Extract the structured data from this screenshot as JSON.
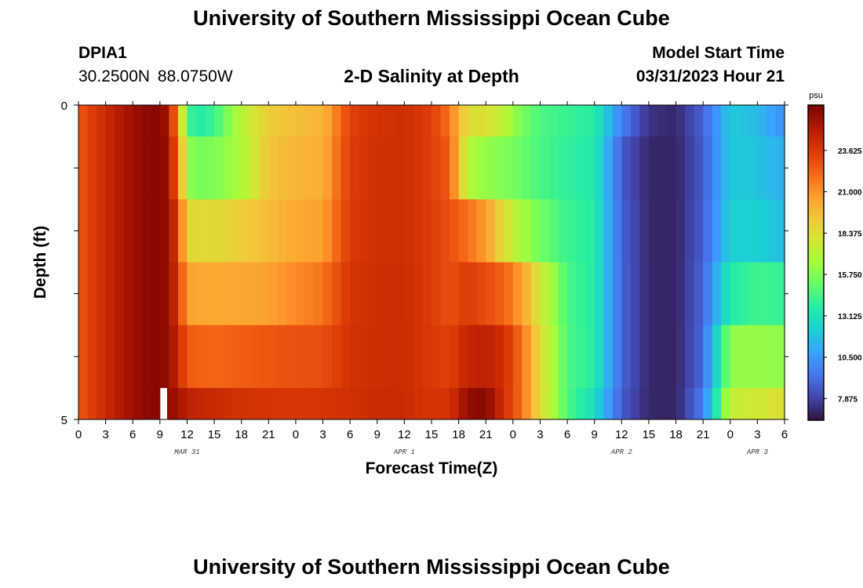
{
  "header": {
    "title": "University of Southern Mississippi Ocean Cube",
    "station_id": "DPIA1",
    "station_coords": "30.2500N  88.0750W",
    "chart_title": "2-D Salinity at Depth",
    "model_start_label": "Model Start Time",
    "model_start_value": "03/31/2023 Hour 21"
  },
  "footer": {
    "title": "University of Southern Mississippi Ocean Cube"
  },
  "chart_data": {
    "type": "heatmap",
    "title": "2-D Salinity at Depth",
    "xlabel": "Forecast Time(Z)",
    "ylabel": "Depth (ft)",
    "x_tick_labels": [
      "0",
      "3",
      "6",
      "9",
      "12",
      "15",
      "18",
      "21",
      "0",
      "3",
      "6",
      "9",
      "12",
      "15",
      "18",
      "21",
      "0",
      "3",
      "6",
      "9",
      "12",
      "15",
      "18",
      "21",
      "0",
      "3",
      "6"
    ],
    "x_range_hours": [
      0,
      78
    ],
    "day_labels": [
      {
        "label": "MAR 31",
        "hour": 12
      },
      {
        "label": "APR 1",
        "hour": 36
      },
      {
        "label": "APR 2",
        "hour": 60
      },
      {
        "label": "APR 3",
        "hour": 75
      }
    ],
    "y_tick_labels": [
      "0",
      "5"
    ],
    "y_range": [
      0,
      5
    ],
    "y_reversed": true,
    "layer_bounds": [
      0,
      0.5,
      1.5,
      2.5,
      3.5,
      4.5,
      5
    ],
    "colorbar": {
      "unit": "psu",
      "min": 6.5,
      "max": 26.5,
      "labels": [
        "23.625",
        "21.000",
        "18.375",
        "15.750",
        "13.125",
        "10.500",
        "7.875"
      ]
    },
    "missing": {
      "hour": 9,
      "layer": 5
    },
    "hours": [
      0,
      3,
      6,
      7.5,
      9,
      10,
      11,
      12,
      13,
      15,
      18,
      21,
      24,
      27,
      30,
      33,
      36,
      39,
      41,
      43,
      45,
      47,
      49,
      51,
      54,
      57,
      60,
      63,
      66,
      69,
      72,
      75,
      78
    ],
    "layers": [
      {
        "name": "0-0.5 ft",
        "values": [
          22.6,
          24.3,
          25.6,
          26.0,
          26.2,
          25.2,
          20.6,
          14.6,
          13.5,
          14.2,
          17.1,
          19.1,
          19.6,
          19.9,
          23.3,
          23.9,
          24.1,
          23.4,
          21.8,
          18.3,
          18.3,
          17.3,
          15.5,
          14.6,
          14.1,
          13.7,
          9.7,
          7.4,
          7.1,
          8.8,
          12.1,
          11.5,
          10.2
        ]
      },
      {
        "name": "0.5-1.5 ft",
        "values": [
          22.6,
          24.3,
          25.6,
          26.0,
          26.2,
          25.6,
          21.6,
          16.3,
          15.5,
          15.7,
          16.7,
          19.4,
          19.9,
          20.1,
          23.5,
          24.0,
          24.1,
          23.4,
          22.5,
          17.0,
          16.1,
          15.8,
          15.2,
          14.5,
          13.9,
          13.5,
          8.6,
          7.1,
          7.0,
          8.6,
          12.1,
          11.8,
          11.2
        ]
      },
      {
        "name": "1.5-2.5 ft",
        "values": [
          22.6,
          24.3,
          25.6,
          26.0,
          26.2,
          25.6,
          23.2,
          18.7,
          18.5,
          18.5,
          19.1,
          19.7,
          20.3,
          20.6,
          23.6,
          24.0,
          24.1,
          23.5,
          22.8,
          21.9,
          20.7,
          18.4,
          16.6,
          15.4,
          14.2,
          13.6,
          8.8,
          7.1,
          7.0,
          8.7,
          12.3,
          12.3,
          11.6
        ]
      },
      {
        "name": "2.5-3.5 ft",
        "values": [
          22.6,
          24.3,
          25.6,
          26.0,
          26.2,
          25.6,
          23.7,
          20.6,
          20.4,
          20.3,
          20.4,
          20.6,
          21.2,
          21.8,
          23.8,
          24.1,
          24.2,
          23.5,
          22.8,
          23.6,
          22.9,
          22.3,
          20.6,
          17.9,
          14.5,
          13.6,
          8.9,
          7.1,
          7.0,
          8.9,
          13.6,
          14.3,
          14.0
        ]
      },
      {
        "name": "3.5-4.5 ft",
        "values": [
          22.6,
          24.3,
          25.6,
          26.0,
          26.2,
          25.7,
          24.4,
          22.5,
          22.3,
          22.2,
          22.4,
          22.6,
          22.8,
          22.9,
          23.9,
          24.1,
          24.2,
          23.6,
          23.3,
          24.5,
          24.7,
          24.1,
          21.9,
          18.6,
          14.6,
          13.6,
          8.9,
          7.1,
          7.0,
          9.0,
          16.1,
          16.2,
          16.0
        ]
      },
      {
        "name": "4.5-5 ft",
        "values": [
          22.6,
          24.3,
          25.6,
          26.0,
          26.2,
          26.0,
          25.4,
          24.7,
          24.5,
          24.3,
          23.9,
          23.8,
          23.7,
          23.8,
          24.0,
          24.2,
          24.2,
          23.8,
          23.8,
          25.9,
          26.2,
          24.0,
          21.9,
          18.6,
          14.6,
          12.8,
          8.6,
          7.1,
          7.0,
          9.6,
          17.6,
          17.9,
          18.4
        ]
      }
    ],
    "colormap": [
      "#30123b",
      "#4145ab",
      "#4675ed",
      "#39a2fc",
      "#1bcfd4",
      "#24eca6",
      "#61fc6c",
      "#a4fc3b",
      "#d1e834",
      "#f3c63a",
      "#fe9b2d",
      "#f36315",
      "#d93806",
      "#b11901",
      "#7a0402"
    ]
  }
}
